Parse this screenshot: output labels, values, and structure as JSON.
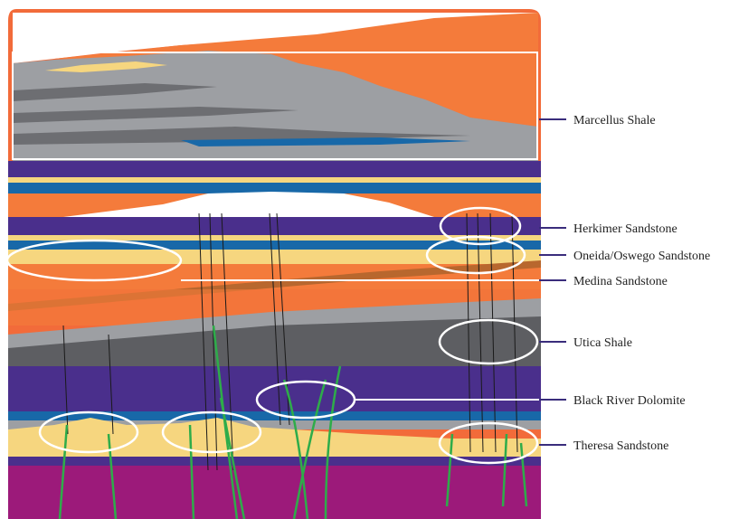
{
  "diagram": {
    "colors": {
      "frame": "#f26b3a",
      "deep_purple": "#9c1a7a",
      "gray": "#9d9fa3",
      "dark_gray": "#5d5e62",
      "purple": "#4a2f8c",
      "blue": "#1868a8",
      "sand": "#f6d67f",
      "orange": "#f47b3b",
      "brown": "#b8672e",
      "fault": "#1a1a1a",
      "fracture": "#2eac4a",
      "leader": "#3a2d7c",
      "highlight": "#ffffff"
    },
    "formations": [
      {
        "id": "marcellus",
        "label": "Marcellus Shale"
      },
      {
        "id": "herkimer",
        "label": "Herkimer Sandstone"
      },
      {
        "id": "oneida",
        "label": "Oneida/Oswego Sandstone"
      },
      {
        "id": "medina",
        "label": "Medina Sandstone"
      },
      {
        "id": "utica",
        "label": "Utica Shale"
      },
      {
        "id": "blackriver",
        "label": "Black River Dolomite"
      },
      {
        "id": "theresa",
        "label": "Theresa Sandstone"
      }
    ]
  }
}
